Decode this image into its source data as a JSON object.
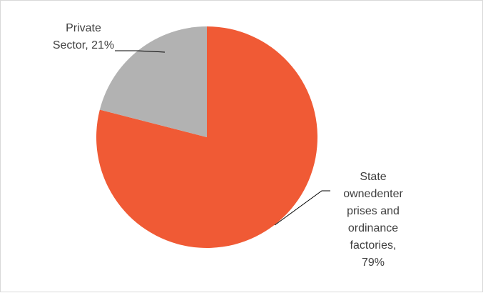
{
  "chart_data": {
    "type": "pie",
    "title": "",
    "slices": [
      {
        "label_lines": [
          "State",
          "ownedenter",
          "prises and",
          "ordinance",
          "factories,",
          "79%"
        ],
        "value": 79,
        "color": "#f05a35"
      },
      {
        "label_lines": [
          "Private",
          "Sector, 21%"
        ],
        "value": 21,
        "color": "#b2b2b2"
      }
    ],
    "start_angle_deg": 0,
    "direction": "clockwise",
    "legend": "none",
    "border_color": "#d9d9d9",
    "leader_line_color": "#000000"
  }
}
